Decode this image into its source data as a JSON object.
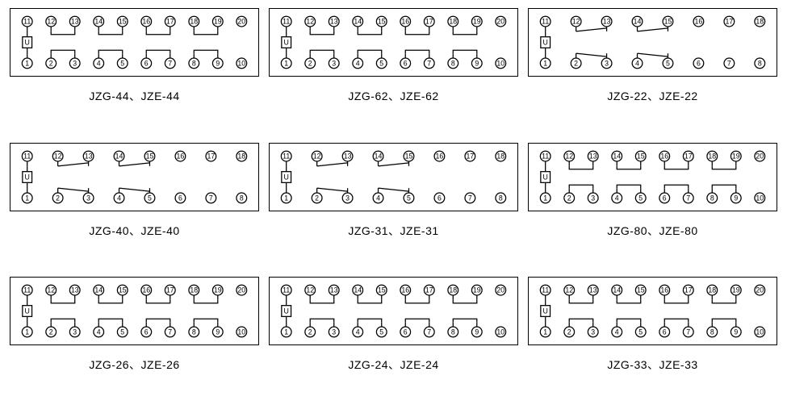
{
  "stroke_color": "#000000",
  "bg_color": "#ffffff",
  "font_family": "Arial, sans-serif",
  "term_radius": 6.5,
  "term_fontsize": 9,
  "label_fontsize": 14,
  "coil_label": "U",
  "models": [
    {
      "label": "JZG-44、JZE-44",
      "terminals": 20,
      "contacts": [
        {
          "top_pins": [
            12,
            13
          ],
          "bot_pins": [
            2,
            3
          ],
          "type": "NO"
        },
        {
          "top_pins": [
            14,
            15
          ],
          "bot_pins": [
            4,
            5
          ],
          "type": "NO"
        },
        {
          "top_pins": [
            16,
            17
          ],
          "bot_pins": [
            6,
            7
          ],
          "type": "NO"
        },
        {
          "top_pins": [
            18,
            19
          ],
          "bot_pins": [
            8,
            9
          ],
          "type": "NO"
        }
      ]
    },
    {
      "label": "JZG-62、JZE-62",
      "terminals": 20,
      "contacts": [
        {
          "top_pins": [
            12,
            13
          ],
          "bot_pins": [
            2,
            3
          ],
          "type": "NO"
        },
        {
          "top_pins": [
            14,
            15
          ],
          "bot_pins": [
            4,
            5
          ],
          "type": "NO"
        },
        {
          "top_pins": [
            16,
            17
          ],
          "bot_pins": [
            6,
            7
          ],
          "type": "NO"
        },
        {
          "top_pins": [
            18,
            19
          ],
          "bot_pins": [
            8,
            9
          ],
          "type": "NO"
        }
      ]
    },
    {
      "label": "JZG-22、JZE-22",
      "terminals": 16,
      "contacts": [
        {
          "top_pins": [
            12,
            13
          ],
          "bot_pins": [
            2,
            3
          ],
          "type": "NC"
        },
        {
          "top_pins": [
            14,
            15
          ],
          "bot_pins": [
            4,
            5
          ],
          "type": "NC"
        }
      ]
    },
    {
      "label": "JZG-40、JZE-40",
      "terminals": 16,
      "contacts": [
        {
          "top_pins": [
            12,
            13
          ],
          "bot_pins": [
            2,
            3
          ],
          "type": "NC"
        },
        {
          "top_pins": [
            14,
            15
          ],
          "bot_pins": [
            4,
            5
          ],
          "type": "NC"
        }
      ]
    },
    {
      "label": "JZG-31、JZE-31",
      "terminals": 16,
      "contacts": [
        {
          "top_pins": [
            12,
            13
          ],
          "bot_pins": [
            2,
            3
          ],
          "type": "NC"
        },
        {
          "top_pins": [
            14,
            15
          ],
          "bot_pins": [
            4,
            5
          ],
          "type": "NC"
        }
      ]
    },
    {
      "label": "JZG-80、JZE-80",
      "terminals": 20,
      "contacts": [
        {
          "top_pins": [
            12,
            13
          ],
          "bot_pins": [
            2,
            3
          ],
          "type": "NO"
        },
        {
          "top_pins": [
            14,
            15
          ],
          "bot_pins": [
            4,
            5
          ],
          "type": "NO"
        },
        {
          "top_pins": [
            16,
            17
          ],
          "bot_pins": [
            6,
            7
          ],
          "type": "NO"
        },
        {
          "top_pins": [
            18,
            19
          ],
          "bot_pins": [
            8,
            9
          ],
          "type": "NO"
        }
      ]
    },
    {
      "label": "JZG-26、JZE-26",
      "terminals": 20,
      "contacts": [
        {
          "top_pins": [
            12,
            13
          ],
          "bot_pins": [
            2,
            3
          ],
          "type": "NO"
        },
        {
          "top_pins": [
            14,
            15
          ],
          "bot_pins": [
            4,
            5
          ],
          "type": "NO"
        },
        {
          "top_pins": [
            16,
            17
          ],
          "bot_pins": [
            6,
            7
          ],
          "type": "NO"
        },
        {
          "top_pins": [
            18,
            19
          ],
          "bot_pins": [
            8,
            9
          ],
          "type": "NO"
        }
      ]
    },
    {
      "label": "JZG-24、JZE-24",
      "terminals": 20,
      "contacts": [
        {
          "top_pins": [
            12,
            13
          ],
          "bot_pins": [
            2,
            3
          ],
          "type": "NO"
        },
        {
          "top_pins": [
            14,
            15
          ],
          "bot_pins": [
            4,
            5
          ],
          "type": "NO"
        },
        {
          "top_pins": [
            16,
            17
          ],
          "bot_pins": [
            6,
            7
          ],
          "type": "NO"
        },
        {
          "top_pins": [
            18,
            19
          ],
          "bot_pins": [
            8,
            9
          ],
          "type": "NO"
        }
      ]
    },
    {
      "label": "JZG-33、JZE-33",
      "terminals": 20,
      "contacts": [
        {
          "top_pins": [
            12,
            13
          ],
          "bot_pins": [
            2,
            3
          ],
          "type": "NO"
        },
        {
          "top_pins": [
            14,
            15
          ],
          "bot_pins": [
            4,
            5
          ],
          "type": "NO"
        },
        {
          "top_pins": [
            16,
            17
          ],
          "bot_pins": [
            6,
            7
          ],
          "type": "NO"
        },
        {
          "top_pins": [
            18,
            19
          ],
          "bot_pins": [
            8,
            9
          ],
          "type": "NO"
        }
      ]
    }
  ]
}
